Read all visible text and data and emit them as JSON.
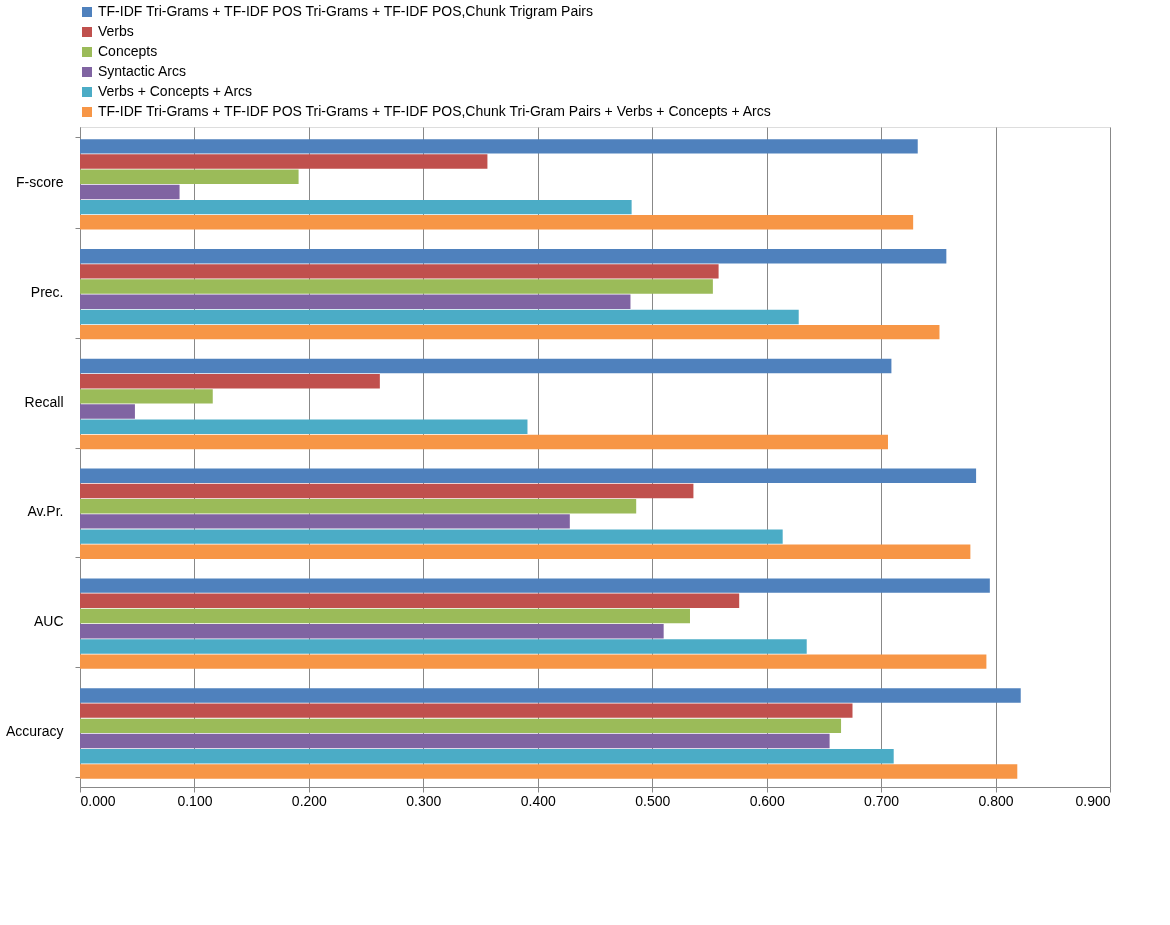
{
  "chart_data": {
    "type": "bar",
    "orientation": "horizontal",
    "categories": [
      "F-score",
      "Prec.",
      "Recall",
      "Av.Pr.",
      "AUC",
      "Accuracy"
    ],
    "series": [
      {
        "name": "TF-IDF Tri-Grams + TF-IDF POS Tri-Grams + TF-IDF POS,Chunk Trigram Pairs",
        "color": "#4f81bd",
        "values": [
          0.732,
          0.757,
          0.709,
          0.783,
          0.795,
          0.822
        ]
      },
      {
        "name": "Verbs",
        "color": "#c0504d",
        "values": [
          0.356,
          0.558,
          0.262,
          0.536,
          0.576,
          0.675
        ]
      },
      {
        "name": "Concepts",
        "color": "#9bbb59",
        "values": [
          0.191,
          0.553,
          0.116,
          0.486,
          0.533,
          0.665
        ]
      },
      {
        "name": "Syntactic Arcs",
        "color": "#8064a2",
        "values": [
          0.087,
          0.481,
          0.048,
          0.428,
          0.51,
          0.655
        ]
      },
      {
        "name": "Verbs + Concepts + Arcs",
        "color": "#4bacc6",
        "values": [
          0.482,
          0.628,
          0.391,
          0.614,
          0.635,
          0.711
        ]
      },
      {
        "name": "TF-IDF Tri-Grams + TF-IDF POS Tri-Grams + TF-IDF POS,Chunk Tri-Gram Pairs + Verbs + Concepts + Arcs",
        "color": "#f79646",
        "values": [
          0.728,
          0.751,
          0.706,
          0.778,
          0.792,
          0.819
        ]
      }
    ],
    "xlim": [
      0,
      0.9
    ],
    "xticks": [
      {
        "value": 0,
        "label": "0.000"
      },
      {
        "value": 0.1,
        "label": "0.100"
      },
      {
        "value": 0.2,
        "label": "0.200"
      },
      {
        "value": 0.3,
        "label": "0.300"
      },
      {
        "value": 0.4,
        "label": "0.400"
      },
      {
        "value": 0.5,
        "label": "0.500"
      },
      {
        "value": 0.6,
        "label": "0.600"
      },
      {
        "value": 0.7,
        "label": "0.700"
      },
      {
        "value": 0.8,
        "label": "0.800"
      },
      {
        "value": 0.9,
        "label": "0.900"
      }
    ],
    "grid": "x",
    "legend": "top"
  }
}
